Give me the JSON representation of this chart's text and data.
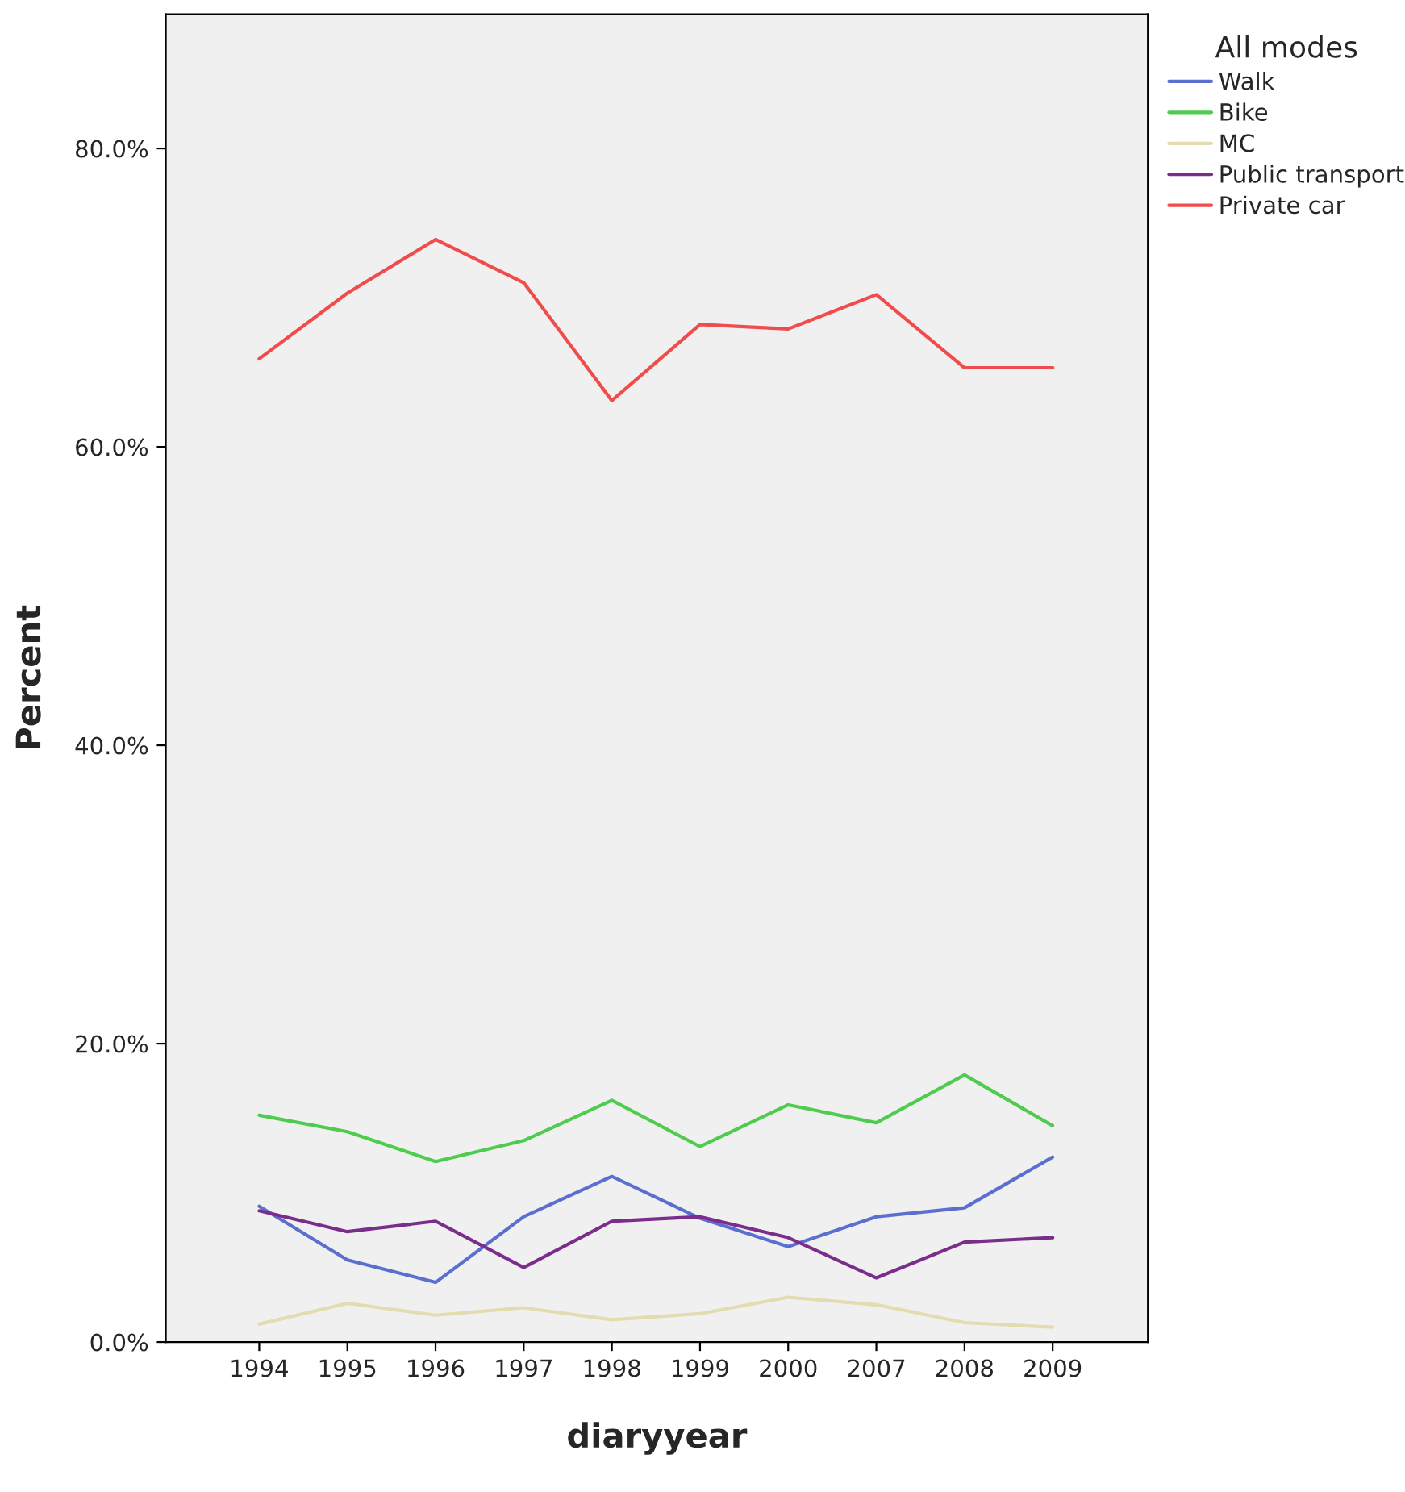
{
  "chart_data": {
    "type": "line",
    "xlabel": "diaryyear",
    "ylabel": "Percent",
    "legend_title": "All modes",
    "legend": "right",
    "grid": false,
    "marker": "none",
    "line_style": "solid",
    "categories": [
      "1994",
      "1995",
      "1996",
      "1997",
      "1998",
      "1999",
      "2000",
      "2007",
      "2008",
      "2009"
    ],
    "ylim": [
      0,
      89
    ],
    "yticks": [
      {
        "value": 0,
        "label": "0.0%"
      },
      {
        "value": 20,
        "label": "20.0%"
      },
      {
        "value": 40,
        "label": "40.0%"
      },
      {
        "value": 60,
        "label": "60.0%"
      },
      {
        "value": 80,
        "label": "80.0%"
      }
    ],
    "series": [
      {
        "name": "Walk",
        "color": "#5a6fcf",
        "values": [
          9.1,
          5.5,
          4.0,
          8.4,
          11.1,
          8.3,
          6.4,
          8.4,
          9.0,
          12.4
        ]
      },
      {
        "name": "Bike",
        "color": "#4fcb4f",
        "values": [
          15.2,
          14.1,
          12.1,
          13.5,
          16.2,
          13.1,
          15.9,
          14.7,
          17.9,
          14.5
        ]
      },
      {
        "name": "MC",
        "color": "#e3dcb0",
        "values": [
          1.2,
          2.6,
          1.8,
          2.3,
          1.5,
          1.9,
          3.0,
          2.5,
          1.3,
          1.0
        ]
      },
      {
        "name": "Public transport",
        "color": "#7b2d8b",
        "values": [
          8.8,
          7.4,
          8.1,
          5.0,
          8.1,
          8.4,
          7.0,
          4.3,
          6.7,
          7.0
        ]
      },
      {
        "name": "Private car",
        "color": "#f04c4c",
        "values": [
          65.9,
          70.3,
          73.9,
          71.0,
          63.1,
          68.2,
          67.9,
          70.2,
          65.3,
          65.3
        ]
      }
    ]
  }
}
